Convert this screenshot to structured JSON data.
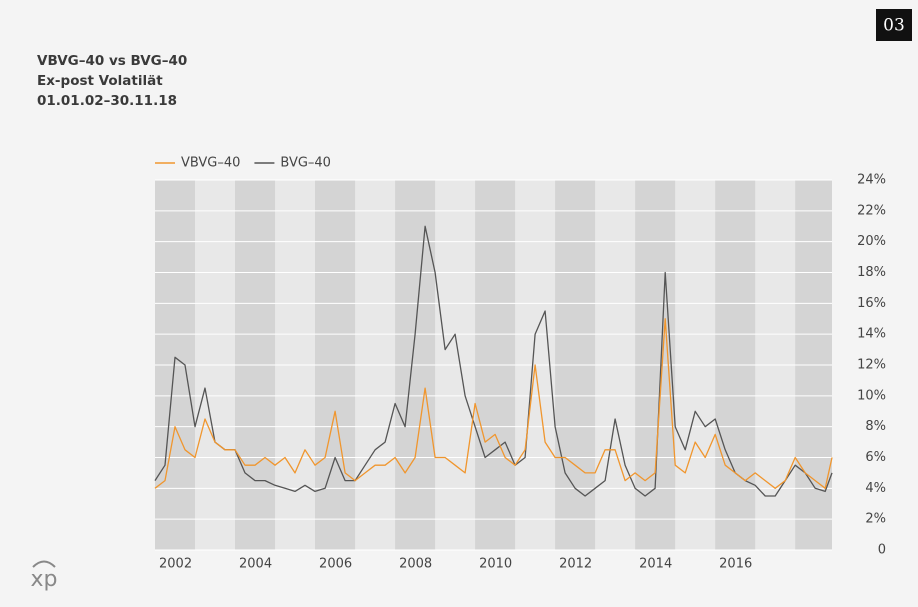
{
  "chart_data": {
    "type": "line",
    "title": "VBVG–40 vs BVG–40",
    "subtitle": "Ex-post Volatilät",
    "period": "01.01.02–30.11.18",
    "badge": "03",
    "logo_text": "xp",
    "x": [
      2002,
      2002.25,
      2002.5,
      2002.75,
      2003,
      2003.25,
      2003.5,
      2003.75,
      2004,
      2004.25,
      2004.5,
      2004.75,
      2005,
      2005.25,
      2005.5,
      2005.75,
      2006,
      2006.25,
      2006.5,
      2006.75,
      2007,
      2007.25,
      2007.5,
      2007.75,
      2008,
      2008.25,
      2008.5,
      2008.75,
      2009,
      2009.25,
      2009.5,
      2009.75,
      2010,
      2010.25,
      2010.5,
      2010.75,
      2011,
      2011.25,
      2011.5,
      2011.75,
      2012,
      2012.25,
      2012.5,
      2012.75,
      2013,
      2013.25,
      2013.5,
      2013.75,
      2014,
      2014.25,
      2014.5,
      2014.75,
      2015,
      2015.25,
      2015.5,
      2015.75,
      2016,
      2016.25,
      2016.5,
      2016.75,
      2017,
      2017.25,
      2017.5,
      2017.75,
      2018,
      2018.25,
      2018.5,
      2018.75,
      2018.92
    ],
    "series": [
      {
        "name": "VBVG–40",
        "color": "#f0962e",
        "values": [
          4,
          4.5,
          8,
          6.5,
          6,
          8.5,
          7,
          6.5,
          6.5,
          5.5,
          5.5,
          6,
          5.5,
          6,
          5,
          6.5,
          5.5,
          6,
          9,
          5,
          4.5,
          5,
          5.5,
          5.5,
          6,
          5,
          6,
          10.5,
          6,
          6,
          5.5,
          5,
          9.5,
          7,
          7.5,
          6,
          5.5,
          6.5,
          12,
          7,
          6,
          6,
          5.5,
          5,
          5,
          6.5,
          6.5,
          4.5,
          5,
          4.5,
          5,
          15,
          5.5,
          5,
          7,
          6,
          7.5,
          5.5,
          5,
          4.5,
          5,
          4.5,
          4,
          4.5,
          6,
          5,
          4.5,
          4,
          6
        ]
      },
      {
        "name": "BVG–40",
        "color": "#555555",
        "values": [
          4.5,
          5.5,
          12.5,
          12,
          8,
          10.5,
          7,
          6.5,
          6.5,
          5,
          4.5,
          4.5,
          4.2,
          4,
          3.8,
          4.2,
          3.8,
          4,
          6,
          4.5,
          4.5,
          5.5,
          6.5,
          7,
          9.5,
          8,
          14,
          21,
          18,
          13,
          14,
          10,
          8,
          6,
          6.5,
          7,
          5.5,
          6,
          14,
          15.5,
          8,
          5,
          4,
          3.5,
          4,
          4.5,
          8.5,
          5.5,
          4,
          3.5,
          4,
          18,
          8,
          6.5,
          9,
          8,
          8.5,
          6.5,
          5,
          4.5,
          4.2,
          3.5,
          3.5,
          4.5,
          5.5,
          5,
          4,
          3.8,
          5
        ]
      }
    ],
    "xlim": [
      2002,
      2018.92
    ],
    "xticks": [
      2002,
      2004,
      2006,
      2008,
      2010,
      2012,
      2014,
      2016
    ],
    "ylim": [
      0,
      24
    ],
    "yticks": [
      0,
      {
        "value": 2,
        "label": "2%"
      },
      {
        "value": 4,
        "label": "4%"
      },
      {
        "value": 6,
        "label": "6%"
      },
      {
        "value": 8,
        "label": "8%"
      },
      {
        "value": 10,
        "label": "10%"
      },
      {
        "value": 12,
        "label": "12%"
      },
      {
        "value": 14,
        "label": "14%"
      },
      {
        "value": 16,
        "label": "16%"
      },
      {
        "value": 18,
        "label": "18%"
      },
      {
        "value": 20,
        "label": "20%"
      },
      {
        "value": 22,
        "label": "22%"
      },
      {
        "value": 24,
        "label": "24%"
      }
    ],
    "grid": true,
    "legend": "top-left"
  }
}
